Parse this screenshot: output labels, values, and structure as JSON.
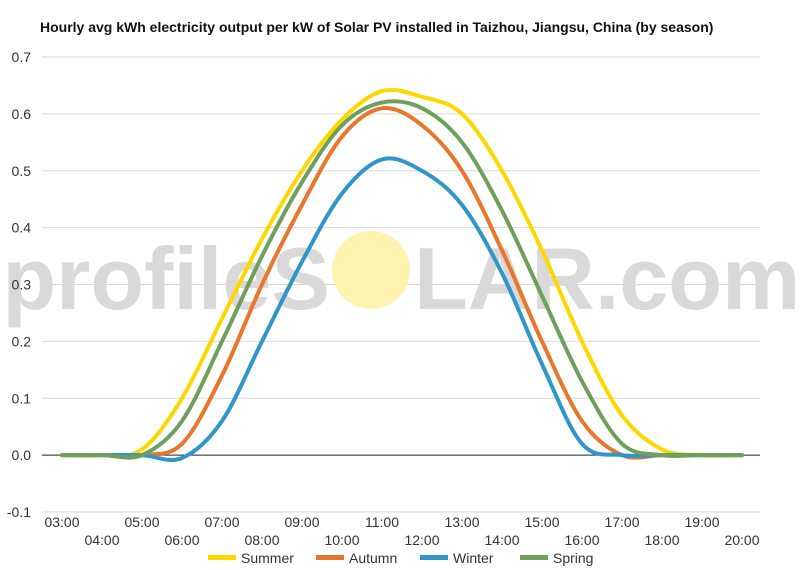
{
  "chart_data": {
    "type": "line",
    "title": "Hourly avg kWh electricity output per kW of Solar PV installed in Taizhou, Jiangsu, China (by season)",
    "xlabel": "",
    "ylabel": "",
    "x": [
      "03:00",
      "04:00",
      "05:00",
      "06:00",
      "07:00",
      "08:00",
      "09:00",
      "10:00",
      "11:00",
      "12:00",
      "13:00",
      "14:00",
      "15:00",
      "16:00",
      "17:00",
      "18:00",
      "19:00",
      "20:00"
    ],
    "x_odd_ticks": [
      "03:00",
      "05:00",
      "07:00",
      "09:00",
      "11:00",
      "13:00",
      "15:00",
      "17:00",
      "19:00"
    ],
    "x_even_ticks": [
      "04:00",
      "06:00",
      "08:00",
      "10:00",
      "12:00",
      "14:00",
      "16:00",
      "18:00",
      "20:00"
    ],
    "ylim": [
      -0.1,
      0.7
    ],
    "yticks": [
      "0.7",
      "0.6",
      "0.5",
      "0.4",
      "0.3",
      "0.2",
      "0.1",
      "0.0",
      "-0.1"
    ],
    "ytick_values": [
      0.7,
      0.6,
      0.5,
      0.4,
      0.3,
      0.2,
      0.1,
      0.0,
      -0.1
    ],
    "grid": true,
    "legend_position": "bottom",
    "series": [
      {
        "name": "Summer",
        "color": "#ffd700",
        "values": [
          0,
          0,
          0.01,
          0.1,
          0.24,
          0.38,
          0.5,
          0.59,
          0.64,
          0.63,
          0.6,
          0.5,
          0.36,
          0.2,
          0.07,
          0.01,
          0,
          0
        ]
      },
      {
        "name": "Autumn",
        "color": "#e8762b",
        "values": [
          0,
          0,
          0,
          0.02,
          0.14,
          0.3,
          0.44,
          0.56,
          0.61,
          0.58,
          0.5,
          0.36,
          0.2,
          0.06,
          0,
          0,
          0,
          0
        ]
      },
      {
        "name": "Winter",
        "color": "#2e96c8",
        "values": [
          0,
          0,
          0,
          -0.005,
          0.06,
          0.2,
          0.34,
          0.46,
          0.52,
          0.5,
          0.44,
          0.32,
          0.16,
          0.02,
          0,
          0,
          0,
          0
        ]
      },
      {
        "name": "Spring",
        "color": "#6fa05b",
        "values": [
          0,
          0,
          0,
          0.06,
          0.2,
          0.35,
          0.48,
          0.58,
          0.62,
          0.61,
          0.55,
          0.43,
          0.28,
          0.13,
          0.02,
          0,
          0,
          0
        ]
      }
    ]
  },
  "watermark": {
    "text_left": "profileS",
    "text_right": "LAR.com",
    "sun_color": "#fff3b0"
  }
}
